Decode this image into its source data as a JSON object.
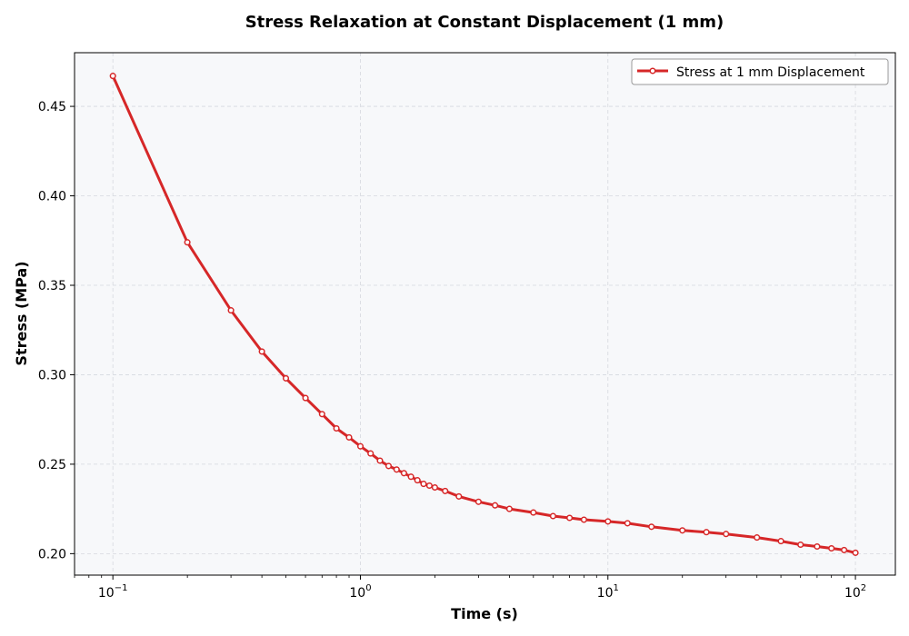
{
  "chart_data": {
    "type": "line",
    "title": "Stress Relaxation at Constant Displacement (1 mm)",
    "xlabel": "Time (s)",
    "ylabel": "Stress (MPa)",
    "x_scale": "log",
    "xlim": [
      0.07,
      145
    ],
    "ylim": [
      0.188,
      0.48
    ],
    "x_ticks": [
      {
        "value": 0.1,
        "base": "10",
        "exp": "−1"
      },
      {
        "value": 1,
        "base": "10",
        "exp": "0"
      },
      {
        "value": 10,
        "base": "10",
        "exp": "1"
      },
      {
        "value": 100,
        "base": "10",
        "exp": "2"
      }
    ],
    "y_ticks": [
      {
        "value": 0.2,
        "label": "0.20"
      },
      {
        "value": 0.25,
        "label": "0.25"
      },
      {
        "value": 0.3,
        "label": "0.30"
      },
      {
        "value": 0.35,
        "label": "0.35"
      },
      {
        "value": 0.4,
        "label": "0.40"
      },
      {
        "value": 0.45,
        "label": "0.45"
      }
    ],
    "grid": true,
    "legend_position": "top-right",
    "colors": {
      "line": "#d62728",
      "marker_face": "#ffffff",
      "plot_bg": "#f7f8fa",
      "grid": "#d5d8de"
    },
    "series": [
      {
        "name": "Stress at 1 mm Displacement",
        "x": [
          0.1,
          0.2,
          0.3,
          0.4,
          0.5,
          0.6,
          0.7,
          0.8,
          0.9,
          1.0,
          1.1,
          1.2,
          1.3,
          1.4,
          1.5,
          1.6,
          1.7,
          1.8,
          1.9,
          2.0,
          2.2,
          2.5,
          3.0,
          3.5,
          4.0,
          5.0,
          6.0,
          7.0,
          8.0,
          10,
          12,
          15,
          20,
          25,
          30,
          40,
          50,
          60,
          70,
          80,
          90,
          100
        ],
        "y": [
          0.467,
          0.374,
          0.336,
          0.313,
          0.298,
          0.287,
          0.278,
          0.27,
          0.265,
          0.26,
          0.256,
          0.252,
          0.249,
          0.247,
          0.245,
          0.243,
          0.241,
          0.239,
          0.238,
          0.237,
          0.235,
          0.232,
          0.229,
          0.227,
          0.225,
          0.223,
          0.221,
          0.22,
          0.219,
          0.218,
          0.217,
          0.215,
          0.213,
          0.212,
          0.211,
          0.209,
          0.207,
          0.205,
          0.204,
          0.203,
          0.202,
          0.2005
        ]
      }
    ]
  }
}
